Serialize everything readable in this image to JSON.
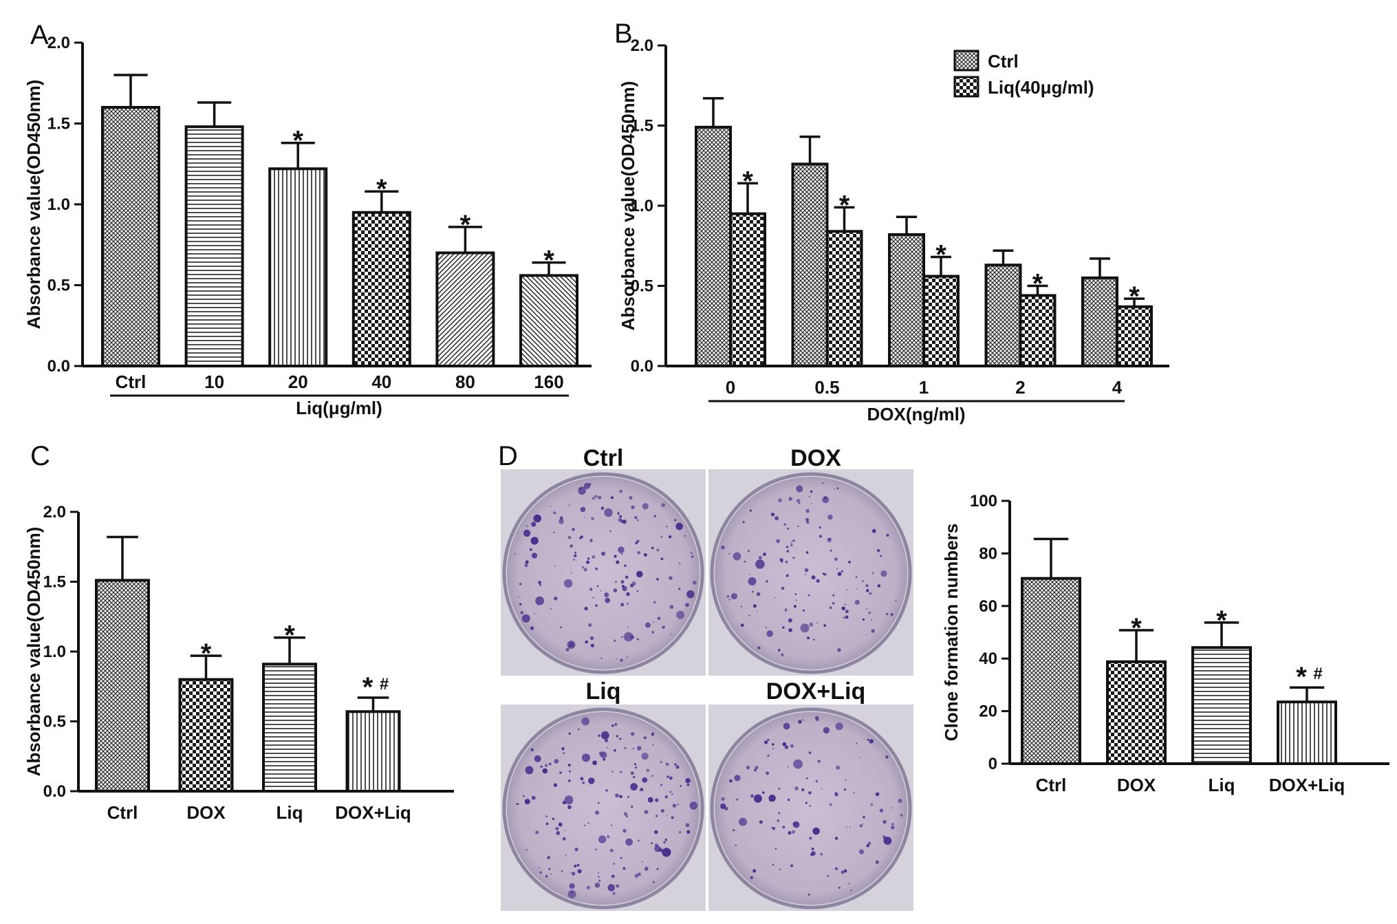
{
  "chart_data": [
    {
      "panel": "A",
      "type": "bar",
      "categories": [
        "Ctrl",
        "10",
        "20",
        "40",
        "80",
        "160"
      ],
      "values": [
        1.6,
        1.48,
        1.22,
        0.95,
        0.7,
        0.56
      ],
      "errors": [
        0.2,
        0.15,
        0.16,
        0.13,
        0.16,
        0.08
      ],
      "significance": [
        "",
        "",
        "*",
        "*",
        "*",
        "*"
      ],
      "patterns": [
        "crossfine",
        "hlines",
        "vlines",
        "check",
        "diagright",
        "diagleft"
      ],
      "ylabel": "Absorbance value(OD450nm)",
      "xlabel": "Liq(μg/ml)",
      "ylim": [
        0,
        2.0
      ],
      "yticks": [
        "0.0",
        "0.5",
        "1.0",
        "1.5",
        "2.0"
      ]
    },
    {
      "panel": "B",
      "type": "bar",
      "categories": [
        "0",
        "0.5",
        "1",
        "2",
        "4"
      ],
      "series": [
        {
          "name": "Ctrl",
          "values": [
            1.49,
            1.26,
            0.82,
            0.63,
            0.55
          ],
          "errors": [
            0.18,
            0.17,
            0.11,
            0.09,
            0.12
          ],
          "significance": [
            "",
            "",
            "",
            "",
            ""
          ],
          "pattern": "crossfine"
        },
        {
          "name": "Liq(40μg/ml)",
          "values": [
            0.95,
            0.84,
            0.56,
            0.44,
            0.37
          ],
          "errors": [
            0.19,
            0.15,
            0.12,
            0.06,
            0.05
          ],
          "significance": [
            "*",
            "*",
            "*",
            "*",
            "*"
          ],
          "pattern": "check"
        }
      ],
      "ylabel": "Absorbance value(OD450nm)",
      "xlabel": "DOX(ng/ml)",
      "ylim": [
        0,
        2.0
      ],
      "yticks": [
        "0.0",
        "0.5",
        "1.0",
        "1.5",
        "2.0"
      ],
      "legend": "top-right"
    },
    {
      "panel": "C",
      "type": "bar",
      "categories": [
        "Ctrl",
        "DOX",
        "Liq",
        "DOX+Liq"
      ],
      "values": [
        1.51,
        0.8,
        0.91,
        0.57
      ],
      "errors": [
        0.31,
        0.17,
        0.19,
        0.1
      ],
      "significance": [
        "",
        "*",
        "*",
        "*#"
      ],
      "patterns": [
        "crossfine",
        "check",
        "hlines",
        "vlines"
      ],
      "ylabel": "Absorbance value(OD450nm)",
      "xlabel": "",
      "ylim": [
        0,
        2.0
      ],
      "yticks": [
        "0.0",
        "0.5",
        "1.0",
        "1.5",
        "2.0"
      ]
    },
    {
      "panel": "D",
      "type": "bar",
      "categories": [
        "Ctrl",
        "DOX",
        "Liq",
        "DOX+Liq"
      ],
      "values": [
        70.5,
        38.8,
        44.2,
        23.5
      ],
      "errors": [
        15.0,
        12.0,
        9.5,
        5.5
      ],
      "significance": [
        "",
        "*",
        "*",
        "*#"
      ],
      "patterns": [
        "crossfine",
        "check",
        "hlines",
        "vlines"
      ],
      "ylabel": "Clone formation numbers",
      "xlabel": "",
      "ylim": [
        0,
        100
      ],
      "yticks": [
        "0",
        "20",
        "40",
        "60",
        "80",
        "100"
      ]
    }
  ],
  "panel_letters": [
    "A",
    "B",
    "C",
    "D"
  ],
  "photo_labels": [
    "Ctrl",
    "DOX",
    "Liq",
    "DOX+Liq"
  ],
  "colors": {
    "dish": "#b9aec2",
    "rim": "#8e85a0",
    "colony": "#4a2f8c",
    "photo_bg": "#d7d3dc",
    "ink": "#111111"
  }
}
